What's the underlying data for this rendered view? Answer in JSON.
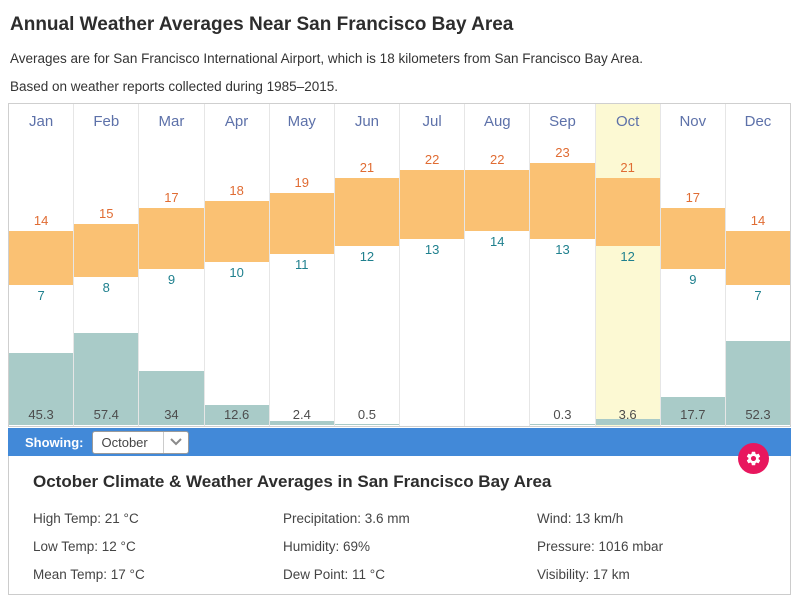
{
  "header": {
    "title": "Annual Weather Averages Near San Francisco Bay Area",
    "subtitle1": "Averages are for San Francisco International Airport, which is 18 kilometers from San Francisco Bay Area.",
    "subtitle2": "Based on weather reports collected during 1985–2015."
  },
  "chart_data": {
    "type": "column-range-and-bar",
    "categories": [
      "Jan",
      "Feb",
      "Mar",
      "Apr",
      "May",
      "Jun",
      "Jul",
      "Aug",
      "Sep",
      "Oct",
      "Nov",
      "Dec"
    ],
    "series": [
      {
        "name": "High Temp (°C)",
        "values": [
          14,
          15,
          17,
          18,
          19,
          21,
          22,
          22,
          23,
          21,
          17,
          14
        ]
      },
      {
        "name": "Low Temp (°C)",
        "values": [
          7,
          8,
          9,
          10,
          11,
          12,
          13,
          14,
          13,
          12,
          9,
          7
        ]
      },
      {
        "name": "Precipitation (mm)",
        "values": [
          45.3,
          57.4,
          34,
          12.6,
          2.4,
          0.5,
          0,
          0,
          0.3,
          3.6,
          17.7,
          52.3
        ]
      }
    ],
    "highlighted_month": "Oct",
    "notes": "Temperature range drawn as orange blocks with high value above and low value below; precipitation drawn as teal bars rising from the baseline with value labels at the bottom; zero-precipitation months (Jul, Aug) show no bar or label.",
    "legend": "none",
    "grid": "off"
  },
  "theme": {
    "accent_blue": "#4289d8",
    "gear_pink": "#e8175e",
    "temp_bar": "#fac173",
    "precip_bar": "#a9cbc8",
    "highlight_col": "#fcf9d3",
    "month_label": "#5d71a9",
    "high_label": "#e06c33",
    "low_label": "#1f808e"
  },
  "showing": {
    "label": "Showing:",
    "value": "October"
  },
  "details": {
    "title": "October Climate & Weather Averages in San Francisco Bay Area",
    "columns": [
      [
        "High Temp: 21 °C",
        "Low Temp: 12 °C",
        "Mean Temp: 17 °C"
      ],
      [
        "Precipitation: 3.6 mm",
        "Humidity: 69%",
        "Dew Point: 11 °C"
      ],
      [
        "Wind: 13 km/h",
        "Pressure: 1016 mbar",
        "Visibility: 17 km"
      ]
    ]
  }
}
